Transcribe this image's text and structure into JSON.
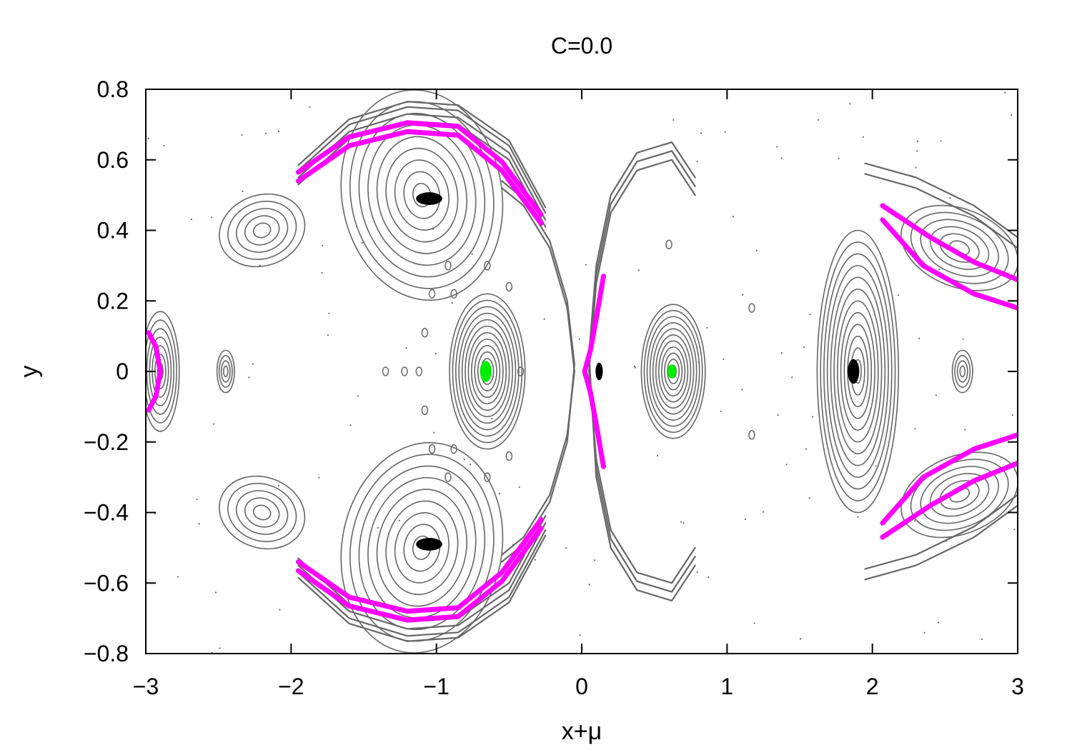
{
  "chart_data": {
    "type": "scatter",
    "title": "C=0.0",
    "xlabel": "x+μ",
    "ylabel": "y",
    "xlim": [
      -3,
      3
    ],
    "ylim": [
      -0.8,
      0.8
    ],
    "xticks": [
      {
        "value": -3,
        "label": "−3"
      },
      {
        "value": -2,
        "label": "−2"
      },
      {
        "value": -1,
        "label": "−1"
      },
      {
        "value": 0,
        "label": "0"
      },
      {
        "value": 1,
        "label": "1"
      },
      {
        "value": 2,
        "label": "2"
      },
      {
        "value": 3,
        "label": "3"
      }
    ],
    "yticks": [
      {
        "value": 0.8,
        "label": "0.8"
      },
      {
        "value": 0.6,
        "label": "0.6"
      },
      {
        "value": 0.4,
        "label": "0.4"
      },
      {
        "value": 0.2,
        "label": "0.2"
      },
      {
        "value": 0,
        "label": "0"
      },
      {
        "value": -0.2,
        "label": "−0.2"
      },
      {
        "value": -0.4,
        "label": "−0.4"
      },
      {
        "value": -0.6,
        "label": "−0.6"
      },
      {
        "value": -0.8,
        "label": "−0.8"
      }
    ],
    "grid": false,
    "colors": {
      "orbit_gray": "#666666",
      "orbit_magenta": "#ff00ff",
      "orbit_green": "#00ee00",
      "orbit_black": "#000000"
    },
    "islands": [
      {
        "color": "gray",
        "cx": -1.1,
        "cy": 0.5,
        "rx": 0.55,
        "ry": 0.3,
        "rings": 9,
        "rot": -10
      },
      {
        "color": "gray",
        "cx": -1.1,
        "cy": -0.5,
        "rx": 0.55,
        "ry": 0.3,
        "rings": 9,
        "rot": 10
      },
      {
        "color": "gray",
        "cx": -0.65,
        "cy": 0.0,
        "rx": 0.26,
        "ry": 0.22,
        "rings": 12,
        "rot": 0
      },
      {
        "color": "gray",
        "cx": 0.63,
        "cy": 0.0,
        "rx": 0.22,
        "ry": 0.19,
        "rings": 11,
        "rot": 0
      },
      {
        "color": "gray",
        "cx": 1.9,
        "cy": 0.0,
        "rx": 0.28,
        "ry": 0.4,
        "rings": 12,
        "rot": 0
      },
      {
        "color": "gray",
        "cx": -2.9,
        "cy": 0.0,
        "rx": 0.13,
        "ry": 0.17,
        "rings": 7,
        "rot": 0
      },
      {
        "color": "gray",
        "cx": -2.45,
        "cy": 0.0,
        "rx": 0.06,
        "ry": 0.06,
        "rings": 4,
        "rot": 0
      },
      {
        "color": "gray",
        "cx": 2.62,
        "cy": 0.0,
        "rx": 0.07,
        "ry": 0.06,
        "rings": 4,
        "rot": 0
      },
      {
        "color": "gray",
        "cx": -2.2,
        "cy": 0.4,
        "rx": 0.3,
        "ry": 0.1,
        "rings": 5,
        "rot": -20
      },
      {
        "color": "gray",
        "cx": -2.2,
        "cy": -0.4,
        "rx": 0.3,
        "ry": 0.1,
        "rings": 5,
        "rot": 20
      },
      {
        "color": "gray",
        "cx": 2.6,
        "cy": 0.35,
        "rx": 0.42,
        "ry": 0.11,
        "rings": 6,
        "rot": 22
      },
      {
        "color": "gray",
        "cx": 2.6,
        "cy": -0.35,
        "rx": 0.42,
        "ry": 0.11,
        "rings": 6,
        "rot": -22
      }
    ],
    "arcs": [
      {
        "color": "gray",
        "x": [
          -1.95,
          -1.6,
          -1.2,
          -0.85,
          -0.5,
          -0.25
        ],
        "y": [
          0.55,
          0.68,
          0.73,
          0.72,
          0.62,
          0.43
        ],
        "offsets": [
          -0.02,
          0.0,
          0.02,
          0.035
        ]
      },
      {
        "color": "gray",
        "x": [
          -1.95,
          -1.6,
          -1.2,
          -0.85,
          -0.5,
          -0.25
        ],
        "y": [
          -0.55,
          -0.68,
          -0.73,
          -0.72,
          -0.62,
          -0.43
        ],
        "offsets": [
          -0.02,
          0.0,
          0.02,
          0.035
        ]
      },
      {
        "color": "gray",
        "x": [
          0.05,
          0.1,
          0.2,
          0.38,
          0.62,
          0.78
        ],
        "y": [
          0.0,
          0.25,
          0.45,
          0.57,
          0.6,
          0.5
        ],
        "offsets": [
          0.0,
          0.025,
          0.05
        ]
      },
      {
        "color": "gray",
        "x": [
          0.05,
          0.1,
          0.2,
          0.38,
          0.62,
          0.78
        ],
        "y": [
          0.0,
          -0.25,
          -0.45,
          -0.57,
          -0.6,
          -0.5
        ],
        "offsets": [
          0.0,
          0.025,
          0.05
        ]
      },
      {
        "color": "gray",
        "x": [
          -0.05,
          -0.1,
          -0.22,
          -0.4,
          -0.55
        ],
        "y": [
          0.0,
          0.18,
          0.35,
          0.47,
          0.52
        ],
        "offsets": [
          0.0,
          0.02
        ]
      },
      {
        "color": "gray",
        "x": [
          -0.05,
          -0.1,
          -0.22,
          -0.4,
          -0.55
        ],
        "y": [
          0.0,
          -0.18,
          -0.35,
          -0.47,
          -0.52
        ],
        "offsets": [
          0.0,
          0.02
        ]
      },
      {
        "color": "gray",
        "x": [
          1.95,
          2.3,
          2.7,
          3.0
        ],
        "y": [
          0.56,
          0.52,
          0.44,
          0.35
        ],
        "offsets": [
          0.0,
          0.03
        ]
      },
      {
        "color": "gray",
        "x": [
          1.95,
          2.3,
          2.7,
          3.0
        ],
        "y": [
          -0.56,
          -0.52,
          -0.44,
          -0.35
        ],
        "offsets": [
          0.0,
          0.03
        ]
      },
      {
        "color": "magenta",
        "x": [
          -1.95,
          -1.6,
          -1.2,
          -0.85,
          -0.55,
          -0.28
        ],
        "y": [
          0.54,
          0.64,
          0.68,
          0.67,
          0.57,
          0.42
        ],
        "offsets": [
          0.0,
          0.025
        ]
      },
      {
        "color": "magenta",
        "x": [
          -1.95,
          -1.6,
          -1.2,
          -0.85,
          -0.55,
          -0.28
        ],
        "y": [
          -0.54,
          -0.64,
          -0.68,
          -0.67,
          -0.57,
          -0.42
        ],
        "offsets": [
          0.0,
          0.025
        ]
      },
      {
        "color": "magenta",
        "x": [
          0.15,
          0.1,
          0.06,
          0.02,
          0.06,
          0.1,
          0.15
        ],
        "y": [
          0.27,
          0.15,
          0.06,
          0.0,
          -0.06,
          -0.15,
          -0.27
        ],
        "offsets": [
          0.0
        ]
      },
      {
        "color": "magenta",
        "x": [
          -2.98,
          -2.93,
          -2.9,
          -2.93,
          -2.98
        ],
        "y": [
          0.11,
          0.07,
          0.0,
          -0.07,
          -0.11
        ],
        "offsets": [
          0.0
        ]
      },
      {
        "color": "magenta",
        "x": [
          2.07,
          2.4,
          2.7,
          3.0
        ],
        "y": [
          0.47,
          0.38,
          0.31,
          0.26
        ],
        "offsets": [
          0.0
        ]
      },
      {
        "color": "magenta",
        "x": [
          2.07,
          2.35,
          2.7,
          3.0
        ],
        "y": [
          0.43,
          0.3,
          0.22,
          0.18
        ],
        "offsets": [
          0.0
        ]
      },
      {
        "color": "magenta",
        "x": [
          2.07,
          2.4,
          2.7,
          3.0
        ],
        "y": [
          -0.47,
          -0.38,
          -0.31,
          -0.26
        ],
        "offsets": [
          0.0
        ]
      },
      {
        "color": "magenta",
        "x": [
          2.07,
          2.35,
          2.7,
          3.0
        ],
        "y": [
          -0.43,
          -0.3,
          -0.22,
          -0.18
        ],
        "offsets": [
          0.0
        ]
      }
    ],
    "blobs": [
      {
        "color": "black",
        "x": -1.05,
        "y": 0.49,
        "rx": 0.09,
        "ry": 0.018
      },
      {
        "color": "black",
        "x": -1.05,
        "y": -0.49,
        "rx": 0.09,
        "ry": 0.018
      },
      {
        "color": "black",
        "x": 0.12,
        "y": 0.0,
        "rx": 0.025,
        "ry": 0.025
      },
      {
        "color": "black",
        "x": 1.87,
        "y": 0.0,
        "rx": 0.04,
        "ry": 0.035
      },
      {
        "color": "green",
        "x": -0.66,
        "y": 0.0,
        "rx": 0.04,
        "ry": 0.03
      },
      {
        "color": "green",
        "x": 0.62,
        "y": 0.0,
        "rx": 0.03,
        "ry": 0.02
      }
    ],
    "small_loops": [
      {
        "x": -0.92,
        "y": 0.3
      },
      {
        "x": -0.92,
        "y": -0.3
      },
      {
        "x": -1.03,
        "y": 0.22
      },
      {
        "x": -1.03,
        "y": -0.22
      },
      {
        "x": -1.08,
        "y": 0.11
      },
      {
        "x": -1.08,
        "y": -0.11
      },
      {
        "x": -1.35,
        "y": 0.0
      },
      {
        "x": -1.22,
        "y": 0.0
      },
      {
        "x": -1.12,
        "y": 0.0
      },
      {
        "x": -0.65,
        "y": 0.3
      },
      {
        "x": -0.65,
        "y": -0.3
      },
      {
        "x": -0.5,
        "y": 0.24
      },
      {
        "x": -0.5,
        "y": -0.24
      },
      {
        "x": -0.42,
        "y": 0.0
      },
      {
        "x": -0.88,
        "y": 0.22
      },
      {
        "x": -0.88,
        "y": -0.22
      },
      {
        "x": 0.6,
        "y": 0.36
      },
      {
        "x": 1.17,
        "y": 0.18
      },
      {
        "x": 1.17,
        "y": -0.18
      }
    ],
    "scatter_dots": 120
  }
}
